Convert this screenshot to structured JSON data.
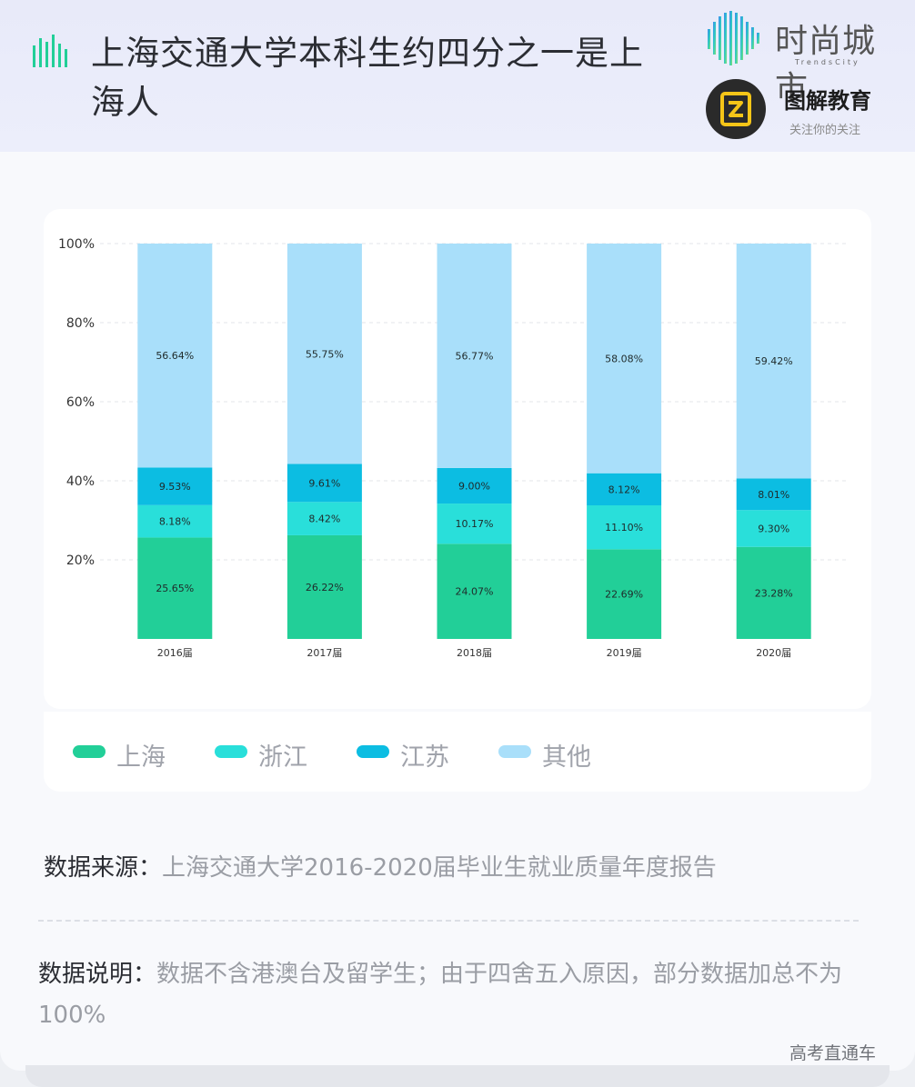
{
  "header": {
    "title": "上海交通大学本科生约四分之一是上海人",
    "brand1_name": "时尚城市",
    "brand1_sub": "TrendsCity",
    "brand2_name": "图解教育",
    "brand2_sub": "关注你的关注"
  },
  "chart_data": {
    "type": "bar",
    "stacked": true,
    "percent": true,
    "categories": [
      "2016届",
      "2017届",
      "2018届",
      "2019届",
      "2020届"
    ],
    "series": [
      {
        "name": "上海",
        "color": "#22cf98",
        "values": [
          25.65,
          26.22,
          24.07,
          22.69,
          23.28
        ],
        "labels": [
          "25.65%",
          "26.22%",
          "24.07%",
          "22.69%",
          "23.28%"
        ]
      },
      {
        "name": "浙江",
        "color": "#29dfda",
        "values": [
          8.18,
          8.42,
          10.17,
          11.1,
          9.3
        ],
        "labels": [
          "8.18%",
          "8.42%",
          "10.17%",
          "11.10%",
          "9.30%"
        ]
      },
      {
        "name": "江苏",
        "color": "#0cbde2",
        "values": [
          9.53,
          9.61,
          9.0,
          8.12,
          8.01
        ],
        "labels": [
          "9.53%",
          "9.61%",
          "9.00%",
          "8.12%",
          "8.01%"
        ]
      },
      {
        "name": "其他",
        "color": "#a9dffa",
        "values": [
          56.64,
          55.75,
          56.77,
          58.08,
          59.42
        ],
        "labels": [
          "56.64%",
          "55.75%",
          "56.77%",
          "58.08%",
          "59.42%"
        ]
      }
    ],
    "ylim": [
      0,
      100
    ],
    "yticks": [
      20,
      40,
      60,
      80,
      100
    ],
    "ytick_labels": [
      "20%",
      "40%",
      "60%",
      "80%",
      "100%"
    ],
    "grid": true,
    "legend": "bottom"
  },
  "footer_info": {
    "source_label": "数据来源：",
    "source_text": "上海交通大学2016-2020届毕业生就业质量年度报告",
    "note_label": "数据说明：",
    "note_text": "数据不含港澳台及留学生；由于四舍五入原因，部分数据加总不为100%",
    "credit": "高考直通车"
  }
}
